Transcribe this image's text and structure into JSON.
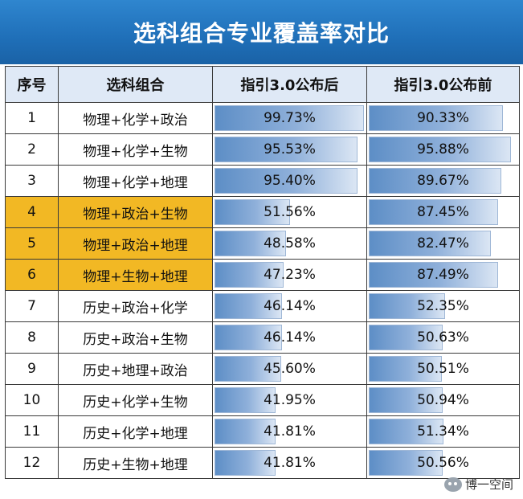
{
  "title": "选科组合专业覆盖率对比",
  "headers": {
    "idx": "序号",
    "combo": "选科组合",
    "after": "指引3.0公布后",
    "before": "指引3.0公布前"
  },
  "colors": {
    "title_bg": "#1f6fb8",
    "highlight": "#f2b824",
    "bar": "#5d8ec6",
    "header_bg": "#dfe9f6"
  },
  "chart_data": {
    "type": "table",
    "title": "选科组合专业覆盖率对比",
    "columns": [
      "序号",
      "选科组合",
      "指引3.0公布后",
      "指引3.0公布前"
    ],
    "rows": [
      {
        "idx": "1",
        "combo": "物理+化学+政治",
        "after": "99.73%",
        "before": "90.33%",
        "after_value": 99.73,
        "before_value": 90.33,
        "highlight": false
      },
      {
        "idx": "2",
        "combo": "物理+化学+生物",
        "after": "95.53%",
        "before": "95.88%",
        "after_value": 95.53,
        "before_value": 95.88,
        "highlight": false
      },
      {
        "idx": "3",
        "combo": "物理+化学+地理",
        "after": "95.40%",
        "before": "89.67%",
        "after_value": 95.4,
        "before_value": 89.67,
        "highlight": false
      },
      {
        "idx": "4",
        "combo": "物理+政治+生物",
        "after": "51.56%",
        "before": "87.45%",
        "after_value": 51.56,
        "before_value": 87.45,
        "highlight": true
      },
      {
        "idx": "5",
        "combo": "物理+政治+地理",
        "after": "48.58%",
        "before": "82.47%",
        "after_value": 48.58,
        "before_value": 82.47,
        "highlight": true
      },
      {
        "idx": "6",
        "combo": "物理+生物+地理",
        "after": "47.23%",
        "before": "87.49%",
        "after_value": 47.23,
        "before_value": 87.49,
        "highlight": true
      },
      {
        "idx": "7",
        "combo": "历史+政治+化学",
        "after": "46.14%",
        "before": "52.35%",
        "after_value": 46.14,
        "before_value": 52.35,
        "highlight": false
      },
      {
        "idx": "8",
        "combo": "历史+政治+生物",
        "after": "46.14%",
        "before": "50.63%",
        "after_value": 46.14,
        "before_value": 50.63,
        "highlight": false
      },
      {
        "idx": "9",
        "combo": "历史+地理+政治",
        "after": "45.60%",
        "before": "50.51%",
        "after_value": 45.6,
        "before_value": 50.51,
        "highlight": false
      },
      {
        "idx": "10",
        "combo": "历史+化学+生物",
        "after": "41.95%",
        "before": "50.94%",
        "after_value": 41.95,
        "before_value": 50.94,
        "highlight": false
      },
      {
        "idx": "11",
        "combo": "历史+化学+地理",
        "after": "41.81%",
        "before": "51.34%",
        "after_value": 41.81,
        "before_value": 51.34,
        "highlight": false
      },
      {
        "idx": "12",
        "combo": "历史+生物+地理",
        "after": "41.81%",
        "before": "50.56%",
        "after_value": 41.81,
        "before_value": 50.56,
        "highlight": false
      }
    ]
  },
  "watermark": {
    "text": "博一空间",
    "icon": "wechat-icon"
  }
}
